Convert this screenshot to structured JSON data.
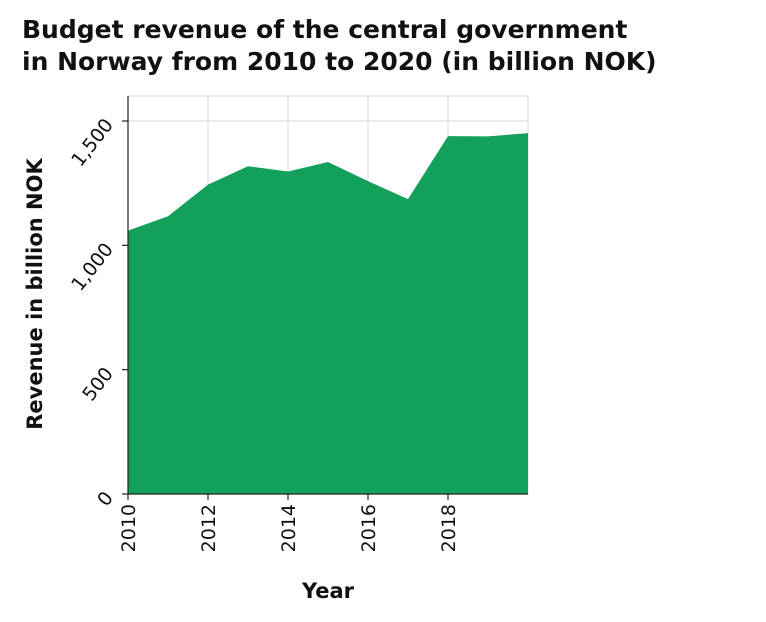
{
  "chart_data": {
    "type": "area",
    "title_lines": [
      "Budget revenue of the central government",
      "in Norway from 2010 to 2020 (in billion NOK)"
    ],
    "xlabel": "Year",
    "ylabel": "Revenue in billion NOK",
    "xlim": [
      2010,
      2020
    ],
    "ylim": [
      0,
      1500
    ],
    "x_ticks": [
      2010,
      2012,
      2014,
      2016,
      2018
    ],
    "x_tick_labels": [
      "2010",
      "2012",
      "2014",
      "2016",
      "2018"
    ],
    "y_ticks": [
      0,
      500,
      1000,
      1500
    ],
    "y_tick_labels": [
      "0",
      "500",
      "1,000",
      "1,500"
    ],
    "grid": true,
    "fill_color": "#13a05a",
    "grid_color": "#d9d9d9",
    "series": [
      {
        "x": [
          2010,
          2011,
          2012,
          2013,
          2014,
          2015,
          2016,
          2017,
          2018,
          2019,
          2020
        ],
        "values": [
          1059,
          1117,
          1244,
          1318,
          1297,
          1335,
          1258,
          1186,
          1439,
          1438,
          1451
        ]
      }
    ]
  }
}
